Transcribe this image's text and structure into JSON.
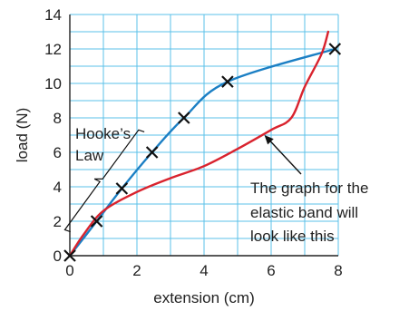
{
  "chart_data": {
    "type": "line",
    "xlabel": "extension (cm)",
    "ylabel": "load (N)",
    "xlim": [
      0,
      8
    ],
    "ylim": [
      0,
      14
    ],
    "x_ticks": [
      0,
      2,
      4,
      6,
      8
    ],
    "y_ticks": [
      0,
      2,
      4,
      6,
      8,
      10,
      12,
      14
    ],
    "grid": true,
    "series": [
      {
        "color": "#1b7fc4",
        "style": "smooth-curve",
        "markers": "cross",
        "points": [
          [
            0,
            0
          ],
          [
            0.8,
            2
          ],
          [
            1.55,
            3.9
          ],
          [
            2.45,
            6
          ],
          [
            3.4,
            8
          ],
          [
            4.7,
            10.1
          ],
          [
            7.9,
            12
          ]
        ]
      },
      {
        "color": "#d9232e",
        "style": "curve",
        "markers": "none",
        "points": [
          [
            0,
            0
          ],
          [
            0.4,
            1.2
          ],
          [
            1.0,
            2.6
          ],
          [
            2.0,
            3.7
          ],
          [
            3.0,
            4.5
          ],
          [
            4.0,
            5.2
          ],
          [
            5.0,
            6.2
          ],
          [
            6.0,
            7.3
          ],
          [
            6.6,
            8.0
          ],
          [
            7.0,
            9.8
          ],
          [
            7.5,
            11.7
          ],
          [
            7.7,
            13.0
          ]
        ]
      }
    ],
    "annotations": {
      "hookes_law": [
        "Hooke’s",
        "Law"
      ],
      "elastic_band": [
        "The graph for the",
        "elastic band will",
        "look like this"
      ]
    }
  }
}
